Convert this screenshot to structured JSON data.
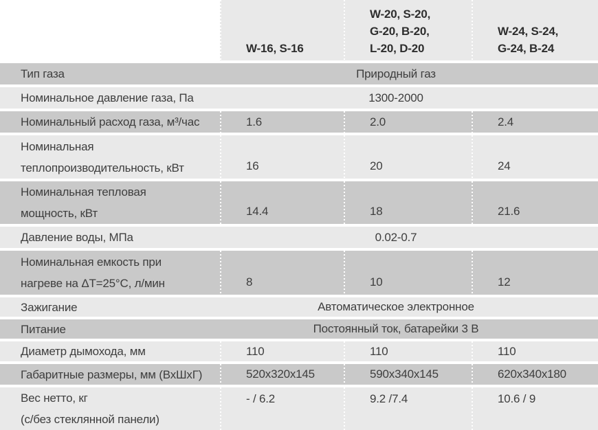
{
  "table": {
    "columns": [
      {
        "lines": [
          "W-16, S-16"
        ]
      },
      {
        "lines": [
          "W-20, S-20,",
          "G-20, B-20,",
          "L-20, D-20"
        ]
      },
      {
        "lines": [
          "W-24, S-24,",
          "G-24, B-24"
        ]
      }
    ],
    "rows": [
      {
        "label_lines": [
          "Тип газа"
        ],
        "span_value": "Природный газ"
      },
      {
        "label_lines": [
          "Номинальное давление газа, Па"
        ],
        "span_value": "1300-2000"
      },
      {
        "label_lines": [
          "Номинальный расход газа, м³/час"
        ],
        "values": [
          "1.6",
          "2.0",
          "2.4"
        ]
      },
      {
        "label_lines": [
          "Номинальная",
          "теплопроизводительность, кВт"
        ],
        "values": [
          "16",
          "20",
          "24"
        ]
      },
      {
        "label_lines": [
          "Номинальная тепловая",
          "мощность, кВт"
        ],
        "values": [
          "14.4",
          "18",
          "21.6"
        ]
      },
      {
        "label_lines": [
          "Давление воды, МПа"
        ],
        "span_value": "0.02-0.7"
      },
      {
        "label_lines": [
          "Номинальная емкость при",
          "нагреве на ΔT=25°C, л/мин"
        ],
        "values": [
          "8",
          "10",
          "12"
        ]
      },
      {
        "label_lines": [
          "Зажигание"
        ],
        "span_value": "Автоматическое электронное"
      },
      {
        "label_lines": [
          "Питание"
        ],
        "span_value": "Постоянный ток, батарейки 3 В"
      },
      {
        "label_lines": [
          "Диаметр дымохода, мм"
        ],
        "values": [
          "110",
          "110",
          "110"
        ]
      },
      {
        "label_lines": [
          "Габаритные размеры, мм (ВхШхГ)"
        ],
        "values": [
          "520x320x145",
          "590x340x145",
          "620x340x180"
        ]
      },
      {
        "label_lines": [
          "Вес нетто, кг",
          "(с/без стеклянной панели)"
        ],
        "values": [
          "- / 6.2",
          "9.2 /7.4",
          "10.6 / 9"
        ]
      }
    ],
    "colors": {
      "row_dark": "#c9c9c9",
      "row_light": "#e9e9e9",
      "separator": "#ffffff",
      "text": "#3e3e3e",
      "header_text": "#2e2e2e"
    }
  }
}
